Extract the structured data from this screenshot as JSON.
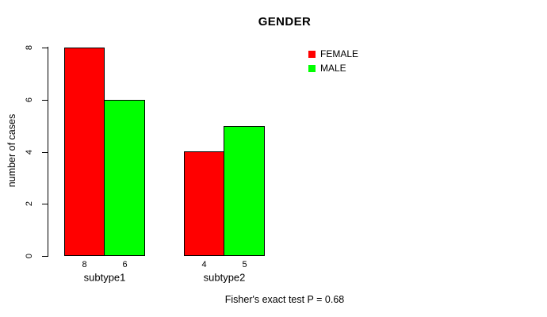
{
  "chart_data": {
    "type": "bar",
    "title": "GENDER",
    "ylabel": "number of cases",
    "xlabel": "",
    "categories": [
      "subtype1",
      "subtype2"
    ],
    "series": [
      {
        "name": "FEMALE",
        "color": "#FF0000",
        "values": [
          8,
          4
        ]
      },
      {
        "name": "MALE",
        "color": "#00FF00",
        "values": [
          6,
          5
        ]
      }
    ],
    "bar_value_labels": [
      [
        8,
        4
      ],
      [
        6,
        5
      ]
    ],
    "ylim": [
      0,
      8
    ],
    "yticks": [
      0,
      2,
      4,
      6,
      8
    ],
    "grid": false,
    "legend_position": "top-right",
    "annotation": "Fisher's exact test P = 0.68"
  }
}
